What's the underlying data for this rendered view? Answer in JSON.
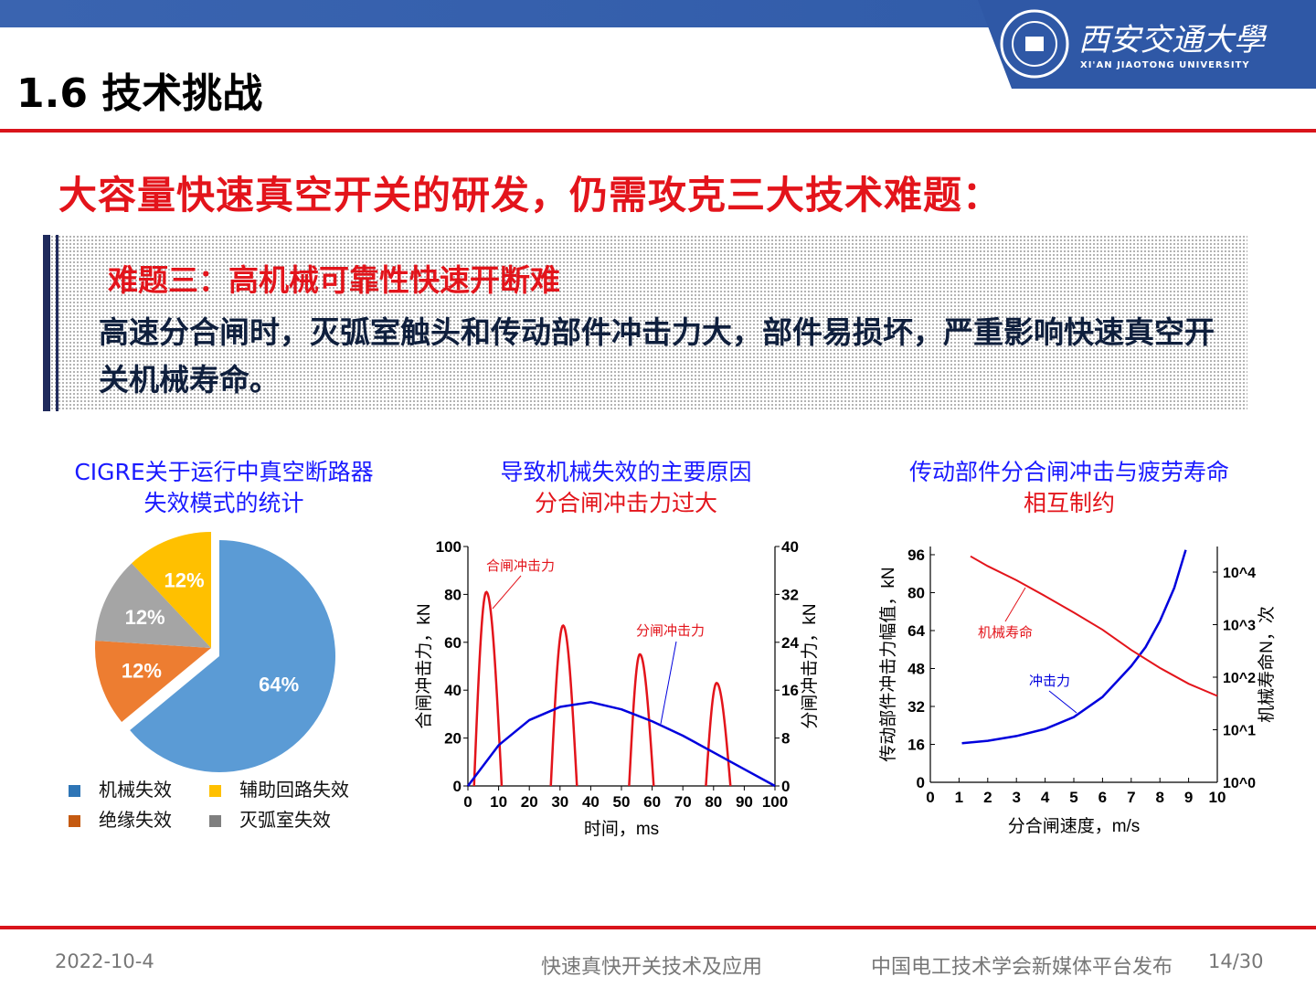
{
  "header": {
    "title": "1.6 技术挑战",
    "logo_text": "西安交通大學",
    "logo_subtext": "XI'AN JIAOTONG UNIVERSITY"
  },
  "headline": "大容量快速真空开关的研发，仍需攻克三大技术难题：",
  "box": {
    "subtitle": "难题三：高机械可靠性快速开断难",
    "body": "高速分合闸时，灭弧室触头和传动部件冲击力大，部件易损坏，严重影响快速真空开关机械寿命。"
  },
  "colors": {
    "red": "#e3141b",
    "blue": "#0000dd",
    "navy": "#1f2a5c"
  },
  "chart_data": [
    {
      "type": "pie",
      "title": [
        "CIGRE关于运行中真空断路器",
        "失效模式的统计"
      ],
      "slices": [
        {
          "label": "机械失效",
          "value": 64,
          "color": "#5b9bd5"
        },
        {
          "label": "绝缘失效",
          "value": 12,
          "color": "#ed7d31"
        },
        {
          "label": "灭弧室失效",
          "value": 12,
          "color": "#a5a5a5"
        },
        {
          "label": "辅助回路失效",
          "value": 12,
          "color": "#ffc000"
        }
      ],
      "data_labels": [
        "64%",
        "12%",
        "12%",
        "12%"
      ],
      "legend_placement": "bottom"
    },
    {
      "type": "line",
      "title": [
        "导致机械失效的主要原因",
        "分合闸冲击力过大"
      ],
      "xlabel": "时间，ms",
      "ylabel": "合闸冲击力，kN",
      "y2label": "分闸冲击力，kN",
      "xlim": [
        0,
        100
      ],
      "ylim": [
        0,
        100
      ],
      "y2lim": [
        0,
        40
      ],
      "xticks": [
        "0",
        "10",
        "20",
        "30",
        "40",
        "50",
        "60",
        "70",
        "80",
        "90",
        "100"
      ],
      "yticks": [
        "0",
        "20",
        "40",
        "60",
        "80",
        "100"
      ],
      "y2ticks": [
        "0",
        "8",
        "16",
        "24",
        "32",
        "40"
      ],
      "series": [
        {
          "name": "合闸冲击力",
          "axis": "left",
          "color": "#e3141b",
          "pulses": [
            {
              "start": 2,
              "peak_t": 6,
              "end": 11,
              "peak": 81
            },
            {
              "start": 27,
              "peak_t": 31,
              "end": 35.5,
              "peak": 67
            },
            {
              "start": 52.5,
              "peak_t": 56,
              "end": 60.5,
              "peak": 55
            },
            {
              "start": 77.5,
              "peak_t": 81,
              "end": 85.5,
              "peak": 43
            }
          ]
        },
        {
          "name": "分闸冲击力",
          "axis": "right",
          "color": "#0000dd",
          "x": [
            0,
            10,
            20,
            30,
            40,
            50,
            60,
            70,
            80,
            90,
            100
          ],
          "y": [
            0,
            6.8,
            11,
            13.2,
            14,
            12.8,
            10.8,
            8.4,
            5.6,
            2.8,
            0
          ]
        }
      ]
    },
    {
      "type": "line",
      "title": [
        "传动部件分合闸冲击与疲劳寿命",
        "相互制约"
      ],
      "xlabel": "分合闸速度，m/s",
      "ylabel": "传动部件冲击力幅值，kN",
      "y2label": "机械寿命N，次",
      "xlim": [
        0,
        10
      ],
      "ylim": [
        0,
        100
      ],
      "y2lim": [
        1,
        20000
      ],
      "y2scale": "log",
      "xticks": [
        "0",
        "1",
        "2",
        "3",
        "4",
        "5",
        "6",
        "7",
        "8",
        "9",
        "10"
      ],
      "yticks": [
        "0",
        "16",
        "32",
        "48",
        "64",
        "80",
        "96"
      ],
      "y2ticks": [
        "10^0",
        "10^1",
        "10^2",
        "10^3",
        "10^4"
      ],
      "series": [
        {
          "name": "冲击力",
          "axis": "left",
          "color": "#0000dd",
          "x": [
            1.1,
            2,
            3,
            4,
            5,
            6,
            7,
            7.5,
            8,
            8.5,
            8.9
          ],
          "y": [
            16.5,
            17.5,
            19.5,
            22.5,
            27.5,
            36,
            49,
            57,
            68,
            82,
            98
          ]
        },
        {
          "name": "机械寿命",
          "axis": "right",
          "color": "#e3141b",
          "x": [
            1.4,
            2,
            3,
            4,
            5,
            6,
            7,
            8,
            9,
            10
          ],
          "y": [
            20000,
            13000,
            7000,
            3500,
            1700,
            800,
            330,
            150,
            75,
            44
          ]
        }
      ]
    }
  ],
  "footer": {
    "date": "2022-10-4",
    "center": "快速真快开关技术及应用",
    "right": "中国电工技术学会新媒体平台发布",
    "page": "14/30"
  }
}
